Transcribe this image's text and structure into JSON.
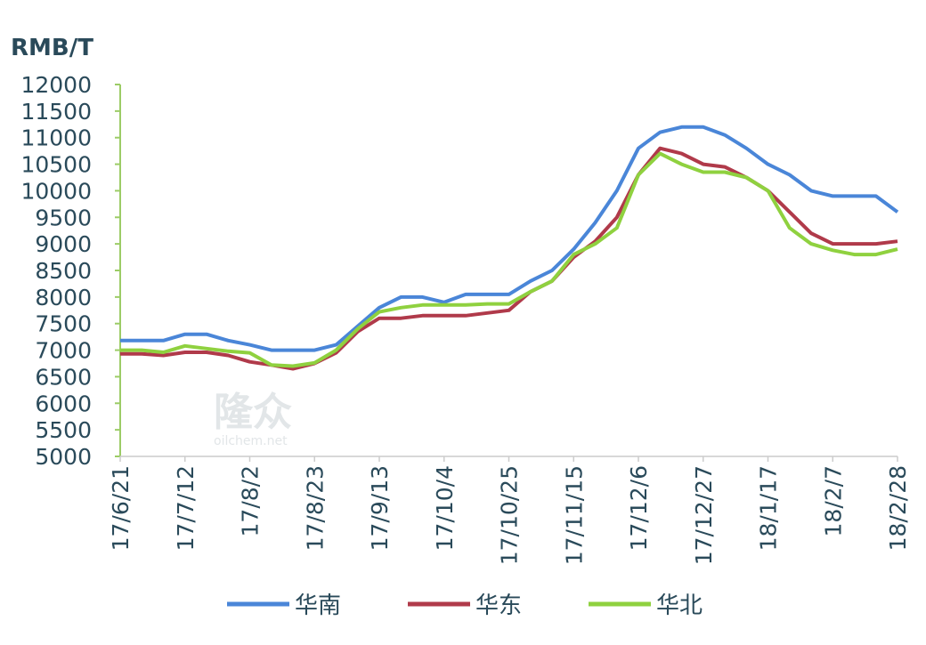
{
  "chart_data": {
    "type": "line",
    "y_label": "RMB/T",
    "watermark": [
      "隆众",
      "oilchem.net"
    ],
    "categories": [
      "17/6/21",
      null,
      null,
      "17/7/12",
      null,
      null,
      "17/8/2",
      null,
      null,
      "17/8/23",
      null,
      null,
      "17/9/13",
      null,
      null,
      "17/10/4",
      null,
      null,
      "17/10/25",
      null,
      null,
      "17/11/15",
      null,
      null,
      "17/12/6",
      null,
      null,
      "17/12/27",
      null,
      null,
      "18/1/17",
      null,
      null,
      "18/2/7",
      null,
      null,
      "18/2/28"
    ],
    "series": [
      {
        "name": "华南",
        "color": "#4a86d8",
        "values": [
          7180,
          7180,
          7180,
          7300,
          7300,
          7180,
          7100,
          7000,
          7000,
          7000,
          7100,
          7450,
          7800,
          8000,
          8000,
          7900,
          8050,
          8050,
          8050,
          8300,
          8500,
          8900,
          9400,
          10000,
          10800,
          11100,
          11200,
          11200,
          11050,
          10800,
          10500,
          10300,
          10000,
          9900,
          9900,
          9900,
          9600
        ]
      },
      {
        "name": "华东",
        "color": "#b03a4a",
        "values": [
          6930,
          6930,
          6900,
          6960,
          6960,
          6900,
          6780,
          6720,
          6650,
          6750,
          6950,
          7350,
          7600,
          7600,
          7650,
          7650,
          7650,
          7700,
          7750,
          8100,
          8300,
          8750,
          9050,
          9500,
          10300,
          10800,
          10700,
          10500,
          10450,
          10250,
          10000,
          9600,
          9200,
          9000,
          9000,
          9000,
          9050
        ]
      },
      {
        "name": "华北",
        "color": "#8fd13f",
        "values": [
          7000,
          7000,
          6960,
          7080,
          7030,
          6980,
          6950,
          6720,
          6700,
          6760,
          7000,
          7400,
          7720,
          7800,
          7850,
          7850,
          7850,
          7870,
          7870,
          8100,
          8300,
          8800,
          9000,
          9300,
          10300,
          10700,
          10500,
          10350,
          10350,
          10250,
          10000,
          9300,
          9000,
          8880,
          8800,
          8800,
          8900
        ]
      }
    ],
    "ylim": [
      5000,
      12000
    ],
    "yticks": [
      5000,
      5500,
      6000,
      6500,
      7000,
      7500,
      8000,
      8500,
      9000,
      9500,
      10000,
      10500,
      11000,
      11500,
      12000
    ],
    "axis_color": "#9ccc66",
    "grid": false
  }
}
